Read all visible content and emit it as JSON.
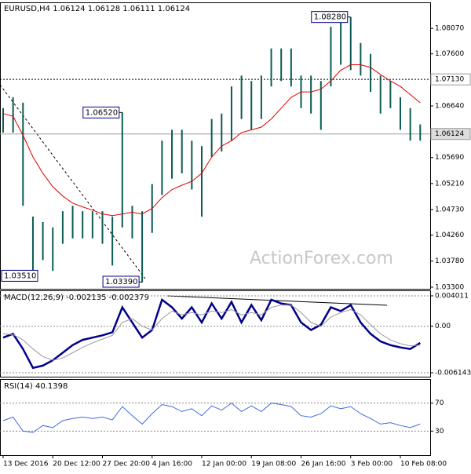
{
  "chart_data": [
    {
      "type": "ohlc",
      "title": "EURUSD,H4  1.06124 1.06128 1.06111 1.06124",
      "watermark": "ActionForex.com",
      "color": "#0b5c52",
      "high": [
        1.066,
        1.068,
        1.067,
        1.046,
        1.045,
        1.044,
        1.047,
        1.048,
        1.047,
        1.047,
        1.047,
        1.046,
        1.0652,
        1.048,
        1.047,
        1.052,
        1.06,
        1.062,
        1.062,
        1.06,
        1.059,
        1.064,
        1.065,
        1.07,
        1.072,
        1.071,
        1.072,
        1.077,
        1.077,
        1.077,
        1.072,
        1.072,
        1.071,
        1.081,
        1.082,
        1.0828,
        1.078,
        1.076,
        1.072,
        1.071,
        1.068,
        1.066,
        1.063
      ],
      "low": [
        1.0615,
        1.0615,
        1.048,
        1.0351,
        1.038,
        1.036,
        1.041,
        1.042,
        1.042,
        1.042,
        1.041,
        1.037,
        1.044,
        1.042,
        1.0339,
        1.043,
        1.05,
        1.053,
        1.054,
        1.051,
        1.046,
        1.057,
        1.058,
        1.06,
        1.064,
        1.062,
        1.064,
        1.07,
        1.071,
        1.07,
        1.066,
        1.065,
        1.062,
        1.07,
        1.074,
        1.073,
        1.072,
        1.069,
        1.065,
        1.066,
        1.062,
        1.06,
        1.06
      ],
      "ma": {
        "color": "#e00000",
        "values": [
          1.065,
          1.0645,
          1.061,
          1.057,
          1.054,
          1.0515,
          1.0498,
          1.0485,
          1.0478,
          1.0472,
          1.0465,
          1.0462,
          1.0465,
          1.0468,
          1.0465,
          1.0475,
          1.0495,
          1.051,
          1.0518,
          1.0525,
          1.054,
          1.057,
          1.059,
          1.06,
          1.0615,
          1.062,
          1.0625,
          1.064,
          1.066,
          1.068,
          1.069,
          1.069,
          1.0695,
          1.071,
          1.073,
          1.074,
          1.074,
          1.0735,
          1.0722,
          1.071,
          1.07,
          1.0685,
          1.067
        ]
      },
      "annotations": [
        {
          "value": 1.0828,
          "label": "1.08280"
        },
        {
          "value": 1.0652,
          "label": "1.06520"
        },
        {
          "value": 1.0351,
          "label": "1.03510"
        },
        {
          "value": 1.0339,
          "label": "1.03390"
        }
      ],
      "levels": [
        {
          "value": 1.0713,
          "label": "1.07130",
          "style": "dotted"
        },
        {
          "value": 1.06124,
          "label": "1.06124",
          "style": "solid"
        }
      ],
      "ylim": [
        1.0327,
        1.0855
      ],
      "yticks": [
        {
          "value": 1.0807,
          "label": "1.08070"
        },
        {
          "value": 1.076,
          "label": "1.07600"
        },
        {
          "value": 1.0664,
          "label": "1.06640"
        },
        {
          "value": 1.0569,
          "label": "1.05690"
        },
        {
          "value": 1.0521,
          "label": "1.05210"
        },
        {
          "value": 1.0473,
          "label": "1.04730"
        },
        {
          "value": 1.0426,
          "label": "1.04260"
        },
        {
          "value": 1.0378,
          "label": "1.03780"
        },
        {
          "value": 1.033,
          "label": "1.03300"
        }
      ]
    },
    {
      "type": "line",
      "title": "MACD(12,26,9) -0.002135 -0.002379",
      "series": [
        {
          "color": "#00008b",
          "values": [
            -0.0015,
            -0.001,
            -0.003,
            -0.0055,
            -0.0052,
            -0.0045,
            -0.0035,
            -0.0025,
            -0.0018,
            -0.0015,
            -0.0012,
            -0.0008,
            0.0025,
            0.0005,
            -0.0015,
            -0.0005,
            0.0035,
            0.0025,
            0.001,
            0.0025,
            0.0005,
            0.003,
            0.001,
            0.0032,
            0.0005,
            0.0028,
            0.0008,
            0.0035,
            0.003,
            0.0028,
            0.0005,
            -0.0005,
            0.0002,
            0.0025,
            0.002,
            0.0028,
            0.0005,
            -0.001,
            -0.002,
            -0.0025,
            -0.0028,
            -0.003,
            -0.0022
          ]
        },
        {
          "color": "#999999",
          "values": [
            -0.001,
            -0.0011,
            -0.0018,
            -0.003,
            -0.004,
            -0.0045,
            -0.0042,
            -0.0035,
            -0.0028,
            -0.0022,
            -0.0017,
            -0.0012,
            0.0005,
            0.001,
            0.0,
            -0.0005,
            0.001,
            0.002,
            0.0015,
            0.0018,
            0.0015,
            0.002,
            0.0018,
            0.0022,
            0.0015,
            0.0018,
            0.0015,
            0.0025,
            0.0028,
            0.0028,
            0.0018,
            0.0005,
            0.0,
            0.0012,
            0.0018,
            0.0022,
            0.0015,
            0.0002,
            -0.001,
            -0.0018,
            -0.0023,
            -0.0026,
            -0.0025
          ]
        }
      ],
      "ylim": [
        -0.00666,
        0.00463
      ],
      "yticks": [
        0.004011,
        {
          "value": 0,
          "label": "0.00"
        },
        -0.006143
      ]
    },
    {
      "type": "line",
      "title": "RSI(14) 40.1398",
      "categories": [
        "13 Dec 2016",
        null,
        null,
        null,
        null,
        "20 Dec 12:00",
        null,
        null,
        null,
        null,
        "27 Dec 20:00",
        null,
        null,
        null,
        null,
        "4 Jan 16:00",
        null,
        null,
        null,
        null,
        "12 Jan 00:00",
        null,
        null,
        null,
        null,
        "19 Jan 08:00",
        null,
        null,
        null,
        null,
        "26 Jan 16:00",
        null,
        null,
        null,
        null,
        "3 Feb 00:00",
        null,
        null,
        null,
        null,
        "10 Feb 08:00",
        null,
        null
      ],
      "series": [
        {
          "color": "#4169e1",
          "values": [
            45,
            50,
            30,
            28,
            38,
            35,
            45,
            48,
            50,
            48,
            50,
            46,
            65,
            52,
            40,
            55,
            68,
            65,
            58,
            62,
            52,
            66,
            60,
            70,
            58,
            66,
            58,
            70,
            68,
            65,
            52,
            50,
            55,
            66,
            62,
            65,
            55,
            48,
            40,
            42,
            38,
            35,
            40
          ]
        }
      ],
      "ylim": [
        -4.4,
        103.3
      ],
      "yticks": [
        70,
        30
      ]
    }
  ]
}
